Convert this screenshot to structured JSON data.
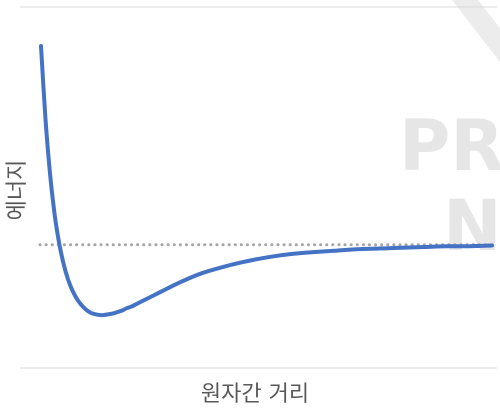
{
  "chart_data": {
    "type": "line",
    "title": "",
    "xlabel": "원자간 거리",
    "ylabel": "에너지",
    "xlim": [
      0,
      10
    ],
    "ylim": [
      -1.25,
      2.8
    ],
    "grid": false,
    "tick_labels_shown": false,
    "reference_line": {
      "y": 0,
      "style": "dotted",
      "color": "#a6a6a6"
    },
    "series": [
      {
        "color": "#4472c4",
        "x": [
          0.0,
          0.1,
          0.2,
          0.3,
          0.4,
          0.5,
          0.6,
          0.7,
          0.8,
          0.9,
          1.0,
          1.1,
          1.2,
          1.3,
          1.4,
          1.5,
          1.6,
          1.7,
          1.8,
          1.9,
          2.0,
          2.1,
          2.2,
          2.4,
          2.6,
          2.8,
          3.0,
          3.3,
          3.6,
          4.0,
          4.4,
          4.8,
          5.2,
          5.6,
          6.0,
          6.5,
          7.0,
          7.5,
          8.0,
          8.5,
          9.0,
          9.5,
          10.0
        ],
        "y": [
          2.63,
          1.66,
          0.94,
          0.41,
          0.03,
          -0.25,
          -0.46,
          -0.61,
          -0.72,
          -0.8,
          -0.86,
          -0.9,
          -0.92,
          -0.93,
          -0.93,
          -0.92,
          -0.91,
          -0.89,
          -0.87,
          -0.84,
          -0.82,
          -0.79,
          -0.76,
          -0.7,
          -0.64,
          -0.58,
          -0.52,
          -0.44,
          -0.37,
          -0.3,
          -0.24,
          -0.19,
          -0.15,
          -0.12,
          -0.1,
          -0.08,
          -0.06,
          -0.05,
          -0.04,
          -0.03,
          -0.02,
          -0.02,
          -0.01
        ]
      }
    ]
  },
  "watermark": {
    "line1": "PR",
    "line2": "N"
  }
}
